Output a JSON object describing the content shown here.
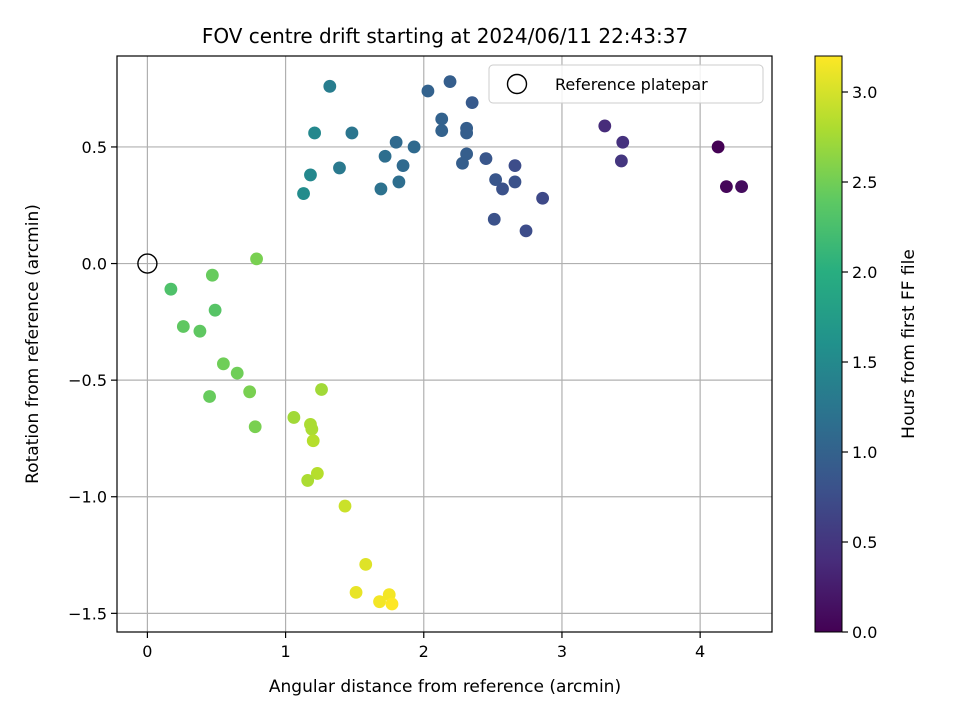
{
  "chart_data": {
    "type": "scatter",
    "title": "FOV centre drift starting at 2024/06/11 22:43:37",
    "xlabel": "Angular distance from reference (arcmin)",
    "ylabel": "Rotation from reference (arcmin)",
    "xlim": [
      -0.22,
      4.52
    ],
    "ylim": [
      -1.58,
      0.89
    ],
    "x_ticks": [
      0,
      1,
      2,
      3,
      4
    ],
    "x_tick_labels": [
      "0",
      "1",
      "2",
      "3",
      "4"
    ],
    "y_ticks": [
      -1.5,
      -1.0,
      -0.5,
      0.0,
      0.5
    ],
    "y_tick_labels": [
      "−1.5",
      "−1.0",
      "−0.5",
      "0.0",
      "0.5"
    ],
    "grid": true,
    "legend": {
      "placement": "top-right",
      "entries": [
        {
          "label": "Reference platepar",
          "marker": "open-circle"
        }
      ]
    },
    "reference_point": {
      "x": 0,
      "y": 0
    },
    "colorbar": {
      "label": "Hours from first FF file",
      "min": 0.0,
      "max": 3.2,
      "ticks": [
        0.0,
        0.5,
        1.0,
        1.5,
        2.0,
        2.5,
        3.0
      ],
      "tick_labels": [
        "0.0",
        "0.5",
        "1.0",
        "1.5",
        "2.0",
        "2.5",
        "3.0"
      ],
      "colormap": "viridis"
    },
    "points": [
      {
        "x": 4.13,
        "y": 0.5,
        "c": 0.0
      },
      {
        "x": 4.19,
        "y": 0.33,
        "c": 0.05
      },
      {
        "x": 4.3,
        "y": 0.33,
        "c": 0.1
      },
      {
        "x": 3.31,
        "y": 0.59,
        "c": 0.4
      },
      {
        "x": 3.44,
        "y": 0.52,
        "c": 0.45
      },
      {
        "x": 3.43,
        "y": 0.44,
        "c": 0.5
      },
      {
        "x": 2.86,
        "y": 0.28,
        "c": 0.7
      },
      {
        "x": 2.74,
        "y": 0.14,
        "c": 0.75
      },
      {
        "x": 2.66,
        "y": 0.42,
        "c": 0.75
      },
      {
        "x": 2.66,
        "y": 0.35,
        "c": 0.8
      },
      {
        "x": 2.57,
        "y": 0.32,
        "c": 0.8
      },
      {
        "x": 2.51,
        "y": 0.19,
        "c": 0.8
      },
      {
        "x": 2.52,
        "y": 0.36,
        "c": 0.85
      },
      {
        "x": 2.45,
        "y": 0.45,
        "c": 0.85
      },
      {
        "x": 2.35,
        "y": 0.69,
        "c": 0.9
      },
      {
        "x": 2.31,
        "y": 0.47,
        "c": 0.95
      },
      {
        "x": 2.31,
        "y": 0.58,
        "c": 0.95
      },
      {
        "x": 2.31,
        "y": 0.56,
        "c": 0.95
      },
      {
        "x": 2.28,
        "y": 0.43,
        "c": 0.95
      },
      {
        "x": 2.19,
        "y": 0.78,
        "c": 0.95
      },
      {
        "x": 2.13,
        "y": 0.62,
        "c": 1.0
      },
      {
        "x": 2.13,
        "y": 0.57,
        "c": 1.0
      },
      {
        "x": 2.03,
        "y": 0.74,
        "c": 1.0
      },
      {
        "x": 1.93,
        "y": 0.5,
        "c": 1.1
      },
      {
        "x": 1.85,
        "y": 0.42,
        "c": 1.1
      },
      {
        "x": 1.8,
        "y": 0.52,
        "c": 1.1
      },
      {
        "x": 1.82,
        "y": 0.35,
        "c": 1.15
      },
      {
        "x": 1.72,
        "y": 0.46,
        "c": 1.15
      },
      {
        "x": 1.69,
        "y": 0.32,
        "c": 1.2
      },
      {
        "x": 1.48,
        "y": 0.56,
        "c": 1.25
      },
      {
        "x": 1.39,
        "y": 0.41,
        "c": 1.3
      },
      {
        "x": 1.32,
        "y": 0.76,
        "c": 1.35
      },
      {
        "x": 1.21,
        "y": 0.56,
        "c": 1.5
      },
      {
        "x": 1.18,
        "y": 0.38,
        "c": 1.5
      },
      {
        "x": 1.13,
        "y": 0.3,
        "c": 1.55
      },
      {
        "x": 0.79,
        "y": 0.02,
        "c": 2.55
      },
      {
        "x": 0.47,
        "y": -0.05,
        "c": 2.45
      },
      {
        "x": 0.17,
        "y": -0.11,
        "c": 2.3
      },
      {
        "x": 0.49,
        "y": -0.2,
        "c": 2.35
      },
      {
        "x": 0.26,
        "y": -0.27,
        "c": 2.4
      },
      {
        "x": 0.38,
        "y": -0.29,
        "c": 2.4
      },
      {
        "x": 0.55,
        "y": -0.43,
        "c": 2.5
      },
      {
        "x": 0.65,
        "y": -0.47,
        "c": 2.5
      },
      {
        "x": 0.74,
        "y": -0.55,
        "c": 2.55
      },
      {
        "x": 0.45,
        "y": -0.57,
        "c": 2.45
      },
      {
        "x": 0.78,
        "y": -0.7,
        "c": 2.55
      },
      {
        "x": 1.26,
        "y": -0.54,
        "c": 2.75
      },
      {
        "x": 1.06,
        "y": -0.66,
        "c": 2.75
      },
      {
        "x": 1.18,
        "y": -0.69,
        "c": 2.8
      },
      {
        "x": 1.19,
        "y": -0.71,
        "c": 2.8
      },
      {
        "x": 1.2,
        "y": -0.76,
        "c": 2.85
      },
      {
        "x": 1.23,
        "y": -0.9,
        "c": 2.85
      },
      {
        "x": 1.16,
        "y": -0.93,
        "c": 2.8
      },
      {
        "x": 1.43,
        "y": -1.04,
        "c": 2.95
      },
      {
        "x": 1.58,
        "y": -1.29,
        "c": 3.05
      },
      {
        "x": 1.51,
        "y": -1.41,
        "c": 3.1
      },
      {
        "x": 1.75,
        "y": -1.42,
        "c": 3.15
      },
      {
        "x": 1.68,
        "y": -1.45,
        "c": 3.15
      },
      {
        "x": 1.77,
        "y": -1.46,
        "c": 3.2
      }
    ]
  }
}
